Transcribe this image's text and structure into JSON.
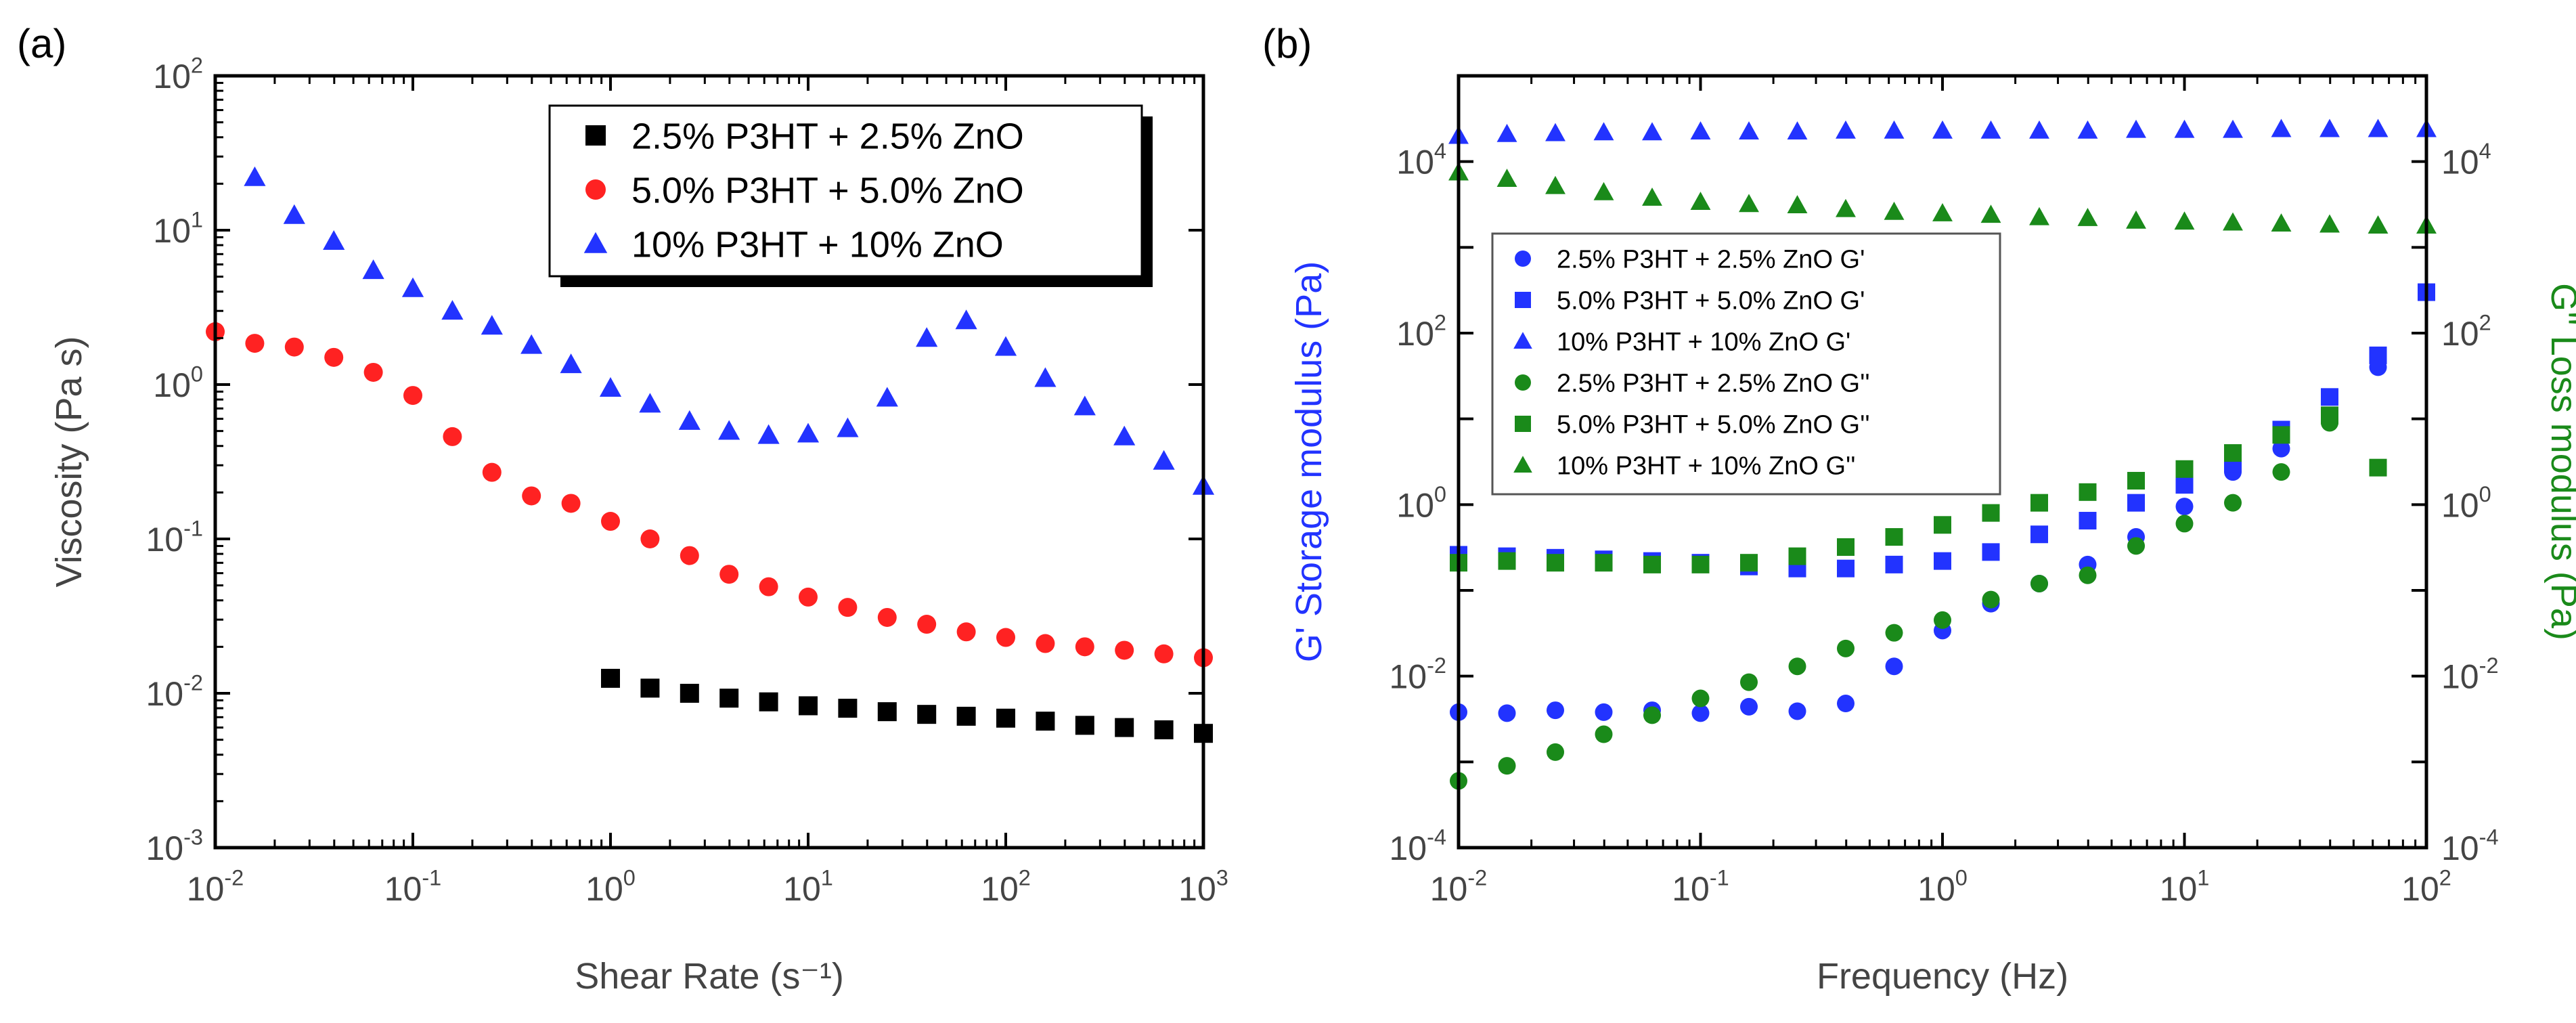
{
  "chart_data": [
    {
      "panel": "(a)",
      "type": "scatter",
      "xscale": "log",
      "yscale": "log",
      "xlim": [
        0.01,
        1000
      ],
      "ylim": [
        0.001,
        100
      ],
      "xlabel": "Shear Rate (s⁻¹)",
      "ylabel": "Viscosity (Pa s)",
      "xticks": [
        {
          "base": "10",
          "exp": "-2"
        },
        {
          "base": "10",
          "exp": "-1"
        },
        {
          "base": "10",
          "exp": "0"
        },
        {
          "base": "10",
          "exp": "1"
        },
        {
          "base": "10",
          "exp": "2"
        },
        {
          "base": "10",
          "exp": "3"
        }
      ],
      "yticks": [
        {
          "base": "10",
          "exp": "-3"
        },
        {
          "base": "10",
          "exp": "-2"
        },
        {
          "base": "10",
          "exp": "-1"
        },
        {
          "base": "10",
          "exp": "0"
        },
        {
          "base": "10",
          "exp": "1"
        },
        {
          "base": "10",
          "exp": "2"
        }
      ],
      "legend_position": "top-right",
      "series": [
        {
          "name": "2.5% P3HT + 2.5% ZnO",
          "marker": "square",
          "color": "#000000",
          "x": [
            1,
            1.585,
            2.512,
            3.981,
            6.31,
            10,
            15.85,
            25.12,
            39.81,
            63.1,
            100,
            158.5,
            251.2,
            398.1,
            631,
            1000
          ],
          "y": [
            0.0125,
            0.0108,
            0.01,
            0.0093,
            0.0088,
            0.0083,
            0.008,
            0.0076,
            0.0073,
            0.0071,
            0.0069,
            0.0066,
            0.0062,
            0.006,
            0.0058,
            0.0055
          ]
        },
        {
          "name": "5.0% P3HT + 5.0% ZnO",
          "marker": "circle",
          "color": "#ff2222",
          "x": [
            0.01,
            0.01585,
            0.02512,
            0.03981,
            0.0631,
            0.1,
            0.1585,
            0.2512,
            0.3981,
            0.631,
            1,
            1.585,
            2.512,
            3.981,
            6.31,
            10,
            15.85,
            25.12,
            39.81,
            63.1,
            100,
            158.5,
            251.2,
            398.1,
            631,
            1000
          ],
          "y": [
            2.2,
            1.85,
            1.75,
            1.5,
            1.2,
            0.85,
            0.46,
            0.27,
            0.19,
            0.17,
            0.13,
            0.1,
            0.078,
            0.059,
            0.049,
            0.042,
            0.036,
            0.031,
            0.028,
            0.025,
            0.023,
            0.021,
            0.02,
            0.019,
            0.018,
            0.017
          ]
        },
        {
          "name": "10% P3HT + 10% ZnO",
          "marker": "triangle",
          "color": "#2233ff",
          "x": [
            0.01585,
            0.02512,
            0.03981,
            0.0631,
            0.1,
            0.1585,
            0.2512,
            0.3981,
            0.631,
            1,
            1.585,
            2.512,
            3.981,
            6.31,
            10,
            15.85,
            25.12,
            39.81,
            63.1,
            100,
            158.5,
            251.2,
            398.1,
            631,
            1000
          ],
          "y": [
            22,
            12.5,
            8.5,
            5.5,
            4.2,
            3.0,
            2.4,
            1.8,
            1.35,
            0.95,
            0.75,
            0.58,
            0.5,
            0.47,
            0.48,
            0.52,
            0.82,
            2.0,
            2.6,
            1.75,
            1.1,
            0.72,
            0.46,
            0.32,
            0.22
          ]
        }
      ]
    },
    {
      "panel": "(b)",
      "type": "scatter",
      "xscale": "log",
      "yscale": "log",
      "xlim": [
        0.01,
        100
      ],
      "ylim": [
        0.0001,
        100000
      ],
      "xlabel": "Frequency (Hz)",
      "ylabel_left": "G' Storage modulus (Pa)",
      "ylabel_right": "G'' Loss modulus (Pa)",
      "xticks": [
        {
          "base": "10",
          "exp": "-2"
        },
        {
          "base": "10",
          "exp": "-1"
        },
        {
          "base": "10",
          "exp": "0"
        },
        {
          "base": "10",
          "exp": "1"
        },
        {
          "base": "10",
          "exp": "2"
        }
      ],
      "yticks": [
        {
          "base": "10",
          "exp": "-4"
        },
        {
          "base": "10",
          "exp": "-2"
        },
        {
          "base": "10",
          "exp": "0"
        },
        {
          "base": "10",
          "exp": "2"
        },
        {
          "base": "10",
          "exp": "4"
        }
      ],
      "legend_position": "center-left",
      "series": [
        {
          "name": "2.5% P3HT + 2.5% ZnO G'",
          "marker": "circle",
          "color": "#2233ff",
          "x": [
            0.01,
            0.01585,
            0.02512,
            0.03981,
            0.0631,
            0.1,
            0.1585,
            0.2512,
            0.3981,
            0.631,
            1,
            1.585,
            2.512,
            3.981,
            6.31,
            10,
            15.85,
            25.12,
            39.81,
            63.1
          ],
          "y": [
            0.0038,
            0.0037,
            0.004,
            0.0038,
            0.004,
            0.0037,
            0.0044,
            0.0039,
            0.0048,
            0.013,
            0.034,
            0.07,
            0.12,
            0.2,
            0.42,
            0.95,
            2.4,
            4.5,
            9.5,
            40
          ]
        },
        {
          "name": "5.0% P3HT + 5.0% ZnO G'",
          "marker": "square",
          "color": "#2233ff",
          "x": [
            0.01,
            0.01585,
            0.02512,
            0.03981,
            0.0631,
            0.1,
            0.1585,
            0.2512,
            0.3981,
            0.631,
            1,
            1.585,
            2.512,
            3.981,
            6.31,
            10,
            15.85,
            25.12,
            39.81,
            63.1,
            100
          ],
          "y": [
            0.26,
            0.25,
            0.24,
            0.23,
            0.22,
            0.21,
            0.19,
            0.18,
            0.18,
            0.2,
            0.22,
            0.28,
            0.45,
            0.65,
            1.05,
            1.7,
            3.0,
            7.5,
            18,
            55,
            300
          ]
        },
        {
          "name": "10% P3HT + 10% ZnO G'",
          "marker": "triangle",
          "color": "#2233ff",
          "x": [
            0.01,
            0.01585,
            0.02512,
            0.03981,
            0.0631,
            0.1,
            0.1585,
            0.2512,
            0.3981,
            0.631,
            1,
            1.585,
            2.512,
            3.981,
            6.31,
            10,
            15.85,
            25.12,
            39.81,
            63.1,
            100
          ],
          "y": [
            20000,
            21000,
            21500,
            22000,
            22000,
            22500,
            22500,
            22500,
            23000,
            23000,
            23000,
            23000,
            23000,
            23000,
            23500,
            23500,
            23500,
            24000,
            24000,
            24000,
            24000
          ]
        },
        {
          "name": "2.5% P3HT + 2.5% ZnO G''",
          "marker": "circle",
          "color": "#1a8a1a",
          "x": [
            0.01,
            0.01585,
            0.02512,
            0.03981,
            0.0631,
            0.1,
            0.1585,
            0.2512,
            0.3981,
            0.631,
            1,
            1.585,
            2.512,
            3.981,
            6.31,
            10,
            15.85,
            25.12,
            39.81
          ],
          "y": [
            0.0006,
            0.0009,
            0.0013,
            0.0021,
            0.0035,
            0.0055,
            0.0085,
            0.013,
            0.021,
            0.032,
            0.045,
            0.078,
            0.12,
            0.15,
            0.33,
            0.6,
            1.05,
            2.4,
            9.0
          ]
        },
        {
          "name": "5.0% P3HT + 5.0% ZnO G''",
          "marker": "square",
          "color": "#1a8a1a",
          "x": [
            0.01,
            0.01585,
            0.02512,
            0.03981,
            0.0631,
            0.1,
            0.1585,
            0.2512,
            0.3981,
            0.631,
            1,
            1.585,
            2.512,
            3.981,
            6.31,
            10,
            15.85,
            25.12,
            39.81,
            63.1
          ],
          "y": [
            0.21,
            0.22,
            0.21,
            0.21,
            0.2,
            0.2,
            0.21,
            0.25,
            0.32,
            0.42,
            0.58,
            0.8,
            1.05,
            1.4,
            1.9,
            2.6,
            4.0,
            6.5,
            11,
            2.7
          ]
        },
        {
          "name": "10% P3HT + 10% ZnO G''",
          "marker": "triangle",
          "color": "#1a8a1a",
          "x": [
            0.01,
            0.01585,
            0.02512,
            0.03981,
            0.0631,
            0.1,
            0.1585,
            0.2512,
            0.3981,
            0.631,
            1,
            1.585,
            2.512,
            3.981,
            6.31,
            10,
            15.85,
            25.12,
            39.81,
            63.1,
            100
          ],
          "y": [
            7500,
            6300,
            5200,
            4400,
            3800,
            3400,
            3200,
            3100,
            2800,
            2600,
            2500,
            2400,
            2250,
            2200,
            2050,
            2000,
            1950,
            1900,
            1850,
            1800,
            1800
          ]
        }
      ]
    }
  ]
}
